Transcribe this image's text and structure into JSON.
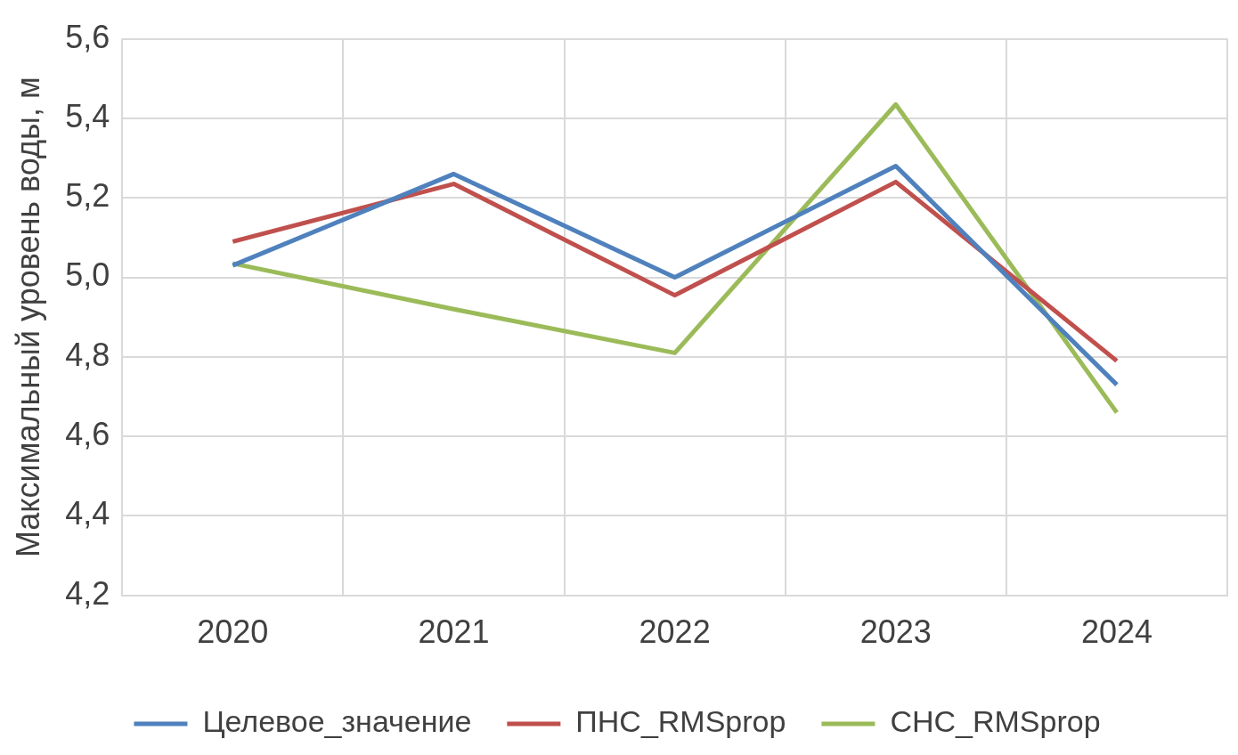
{
  "chart_data": {
    "type": "line",
    "ylabel": "Максимальный уровень воды, м",
    "categories": [
      "2020",
      "2021",
      "2022",
      "2023",
      "2024"
    ],
    "series": [
      {
        "name": "Целевое_значение",
        "color": "#4f81bd",
        "values": [
          5.03,
          5.26,
          5.0,
          5.28,
          4.73
        ]
      },
      {
        "name": "ПНС_RMSprop",
        "color": "#c0504d",
        "values": [
          5.09,
          5.235,
          4.955,
          5.24,
          4.79
        ]
      },
      {
        "name": "СНС_RMSprop",
        "color": "#9bbb59",
        "values": [
          5.035,
          4.92,
          4.81,
          5.435,
          4.66
        ]
      }
    ],
    "ylim": [
      4.2,
      5.6
    ],
    "yticks": [
      {
        "value": 4.2,
        "label": "4,2"
      },
      {
        "value": 4.4,
        "label": "4,4"
      },
      {
        "value": 4.6,
        "label": "4,6"
      },
      {
        "value": 4.8,
        "label": "4,8"
      },
      {
        "value": 5.0,
        "label": "5,0"
      },
      {
        "value": 5.2,
        "label": "5,2"
      },
      {
        "value": 5.4,
        "label": "5,4"
      },
      {
        "value": 5.6,
        "label": "5,6"
      }
    ],
    "grid": true,
    "legend": "bottom",
    "marker": "none",
    "line_style": "solid"
  }
}
